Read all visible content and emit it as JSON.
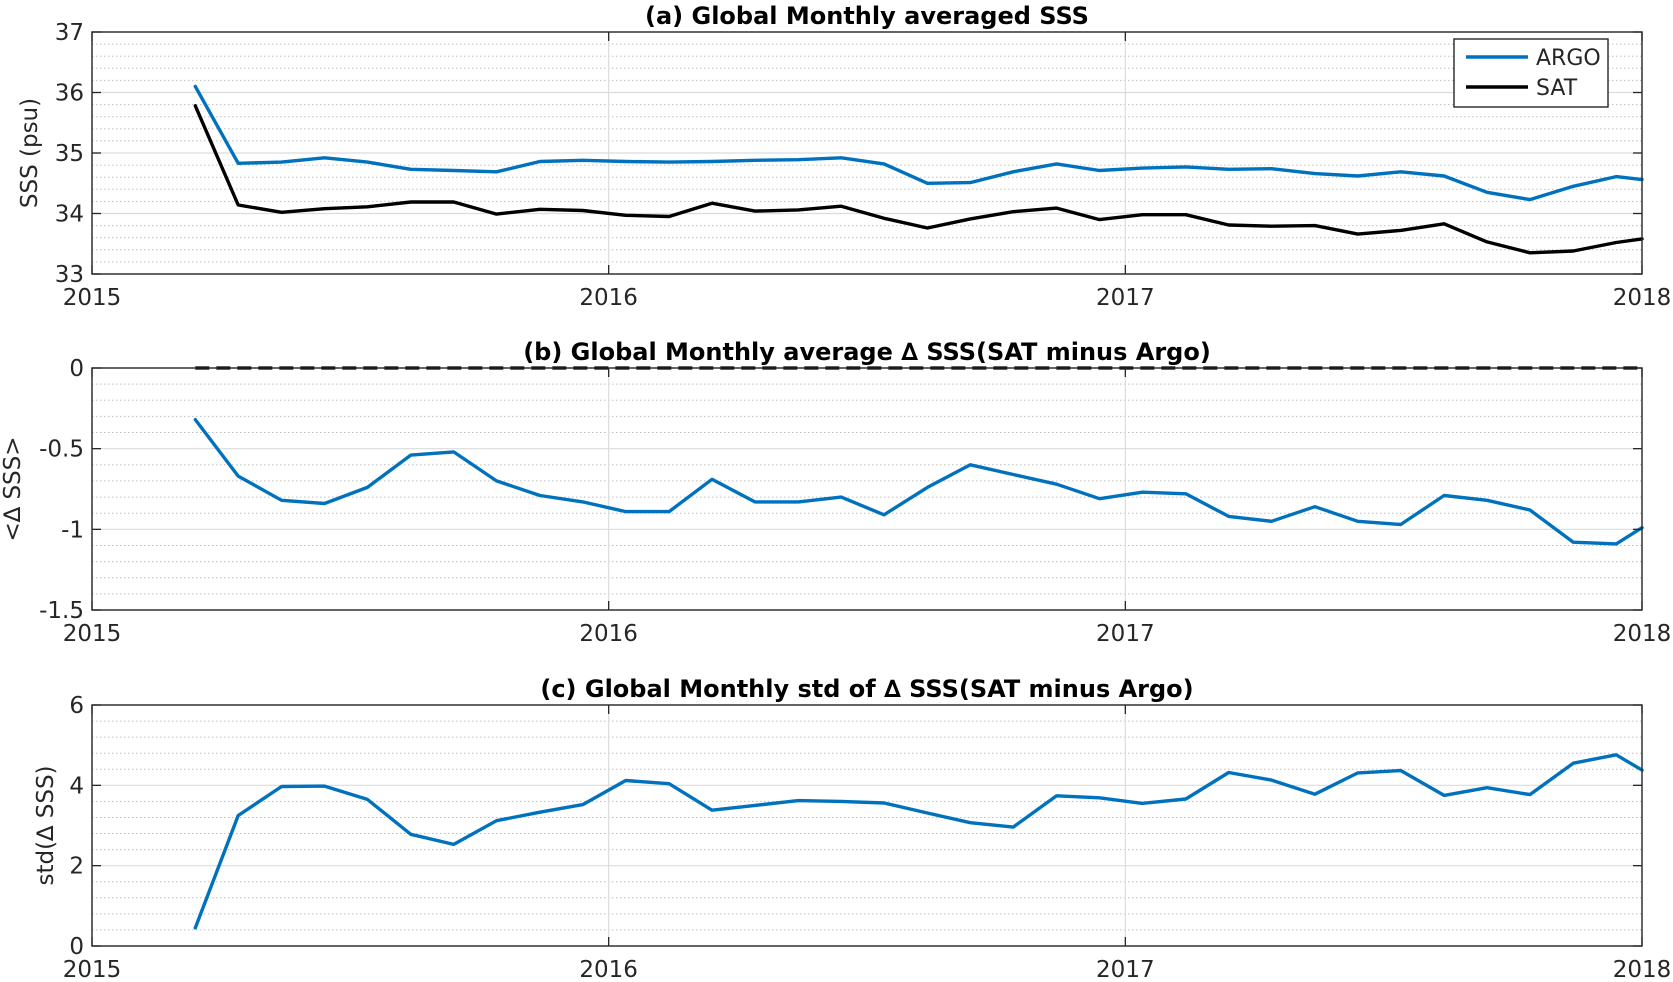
{
  "chart_data": [
    {
      "type": "line",
      "title": "(a) Global Monthly averaged SSS",
      "xlabel": "",
      "ylabel": "SSS (psu)",
      "xlim": [
        2015,
        2018
      ],
      "ylim": [
        33,
        37
      ],
      "xticks": [
        "2015",
        "2016",
        "2017",
        "2018"
      ],
      "yticks": [
        "33",
        "34",
        "35",
        "36",
        "37"
      ],
      "grid": true,
      "minor_grid": true,
      "legend": "top-right",
      "x": [
        2015.2,
        2015.283,
        2015.367,
        2015.45,
        2015.533,
        2015.617,
        2015.7,
        2015.783,
        2015.867,
        2015.95,
        2016.033,
        2016.117,
        2016.2,
        2016.283,
        2016.367,
        2016.45,
        2016.533,
        2016.617,
        2016.7,
        2016.783,
        2016.867,
        2016.95,
        2017.033,
        2017.117,
        2017.2,
        2017.283,
        2017.367,
        2017.45,
        2017.533,
        2017.617,
        2017.7,
        2017.783,
        2017.867,
        2017.95,
        2018.0
      ],
      "series": [
        {
          "name": "ARGO",
          "color": "#0072BD",
          "values": [
            36.1,
            34.83,
            34.85,
            34.92,
            34.85,
            34.73,
            34.71,
            34.69,
            34.86,
            34.88,
            34.86,
            34.85,
            34.86,
            34.88,
            34.89,
            34.92,
            34.82,
            34.5,
            34.51,
            34.69,
            34.82,
            34.71,
            34.75,
            34.77,
            34.73,
            34.74,
            34.66,
            34.62,
            34.69,
            34.62,
            34.35,
            34.23,
            34.45,
            34.61,
            34.56
          ]
        },
        {
          "name": "SAT",
          "color": "#000000",
          "values": [
            35.78,
            34.14,
            34.02,
            34.08,
            34.11,
            34.19,
            34.19,
            33.99,
            34.07,
            34.05,
            33.97,
            33.95,
            34.17,
            34.04,
            34.06,
            34.12,
            33.92,
            33.76,
            33.91,
            34.03,
            34.09,
            33.9,
            33.98,
            33.98,
            33.81,
            33.79,
            33.8,
            33.66,
            33.72,
            33.83,
            33.53,
            33.35,
            33.38,
            33.52,
            33.58
          ]
        }
      ]
    },
    {
      "type": "line",
      "title": "(b) Global Monthly average ∆ SSS(SAT minus Argo)",
      "xlabel": "",
      "ylabel": "<∆ SSS>",
      "xlim": [
        2015,
        2018
      ],
      "ylim": [
        -1.5,
        0
      ],
      "xticks": [
        "2015",
        "2016",
        "2017",
        "2018"
      ],
      "yticks": [
        "-1.5",
        "-1",
        "-0.5",
        "0"
      ],
      "grid": true,
      "minor_grid": true,
      "reference_line": {
        "y": 0,
        "color": "#000000",
        "style": "dashed",
        "xlim": [
          2015.2,
          2018.0
        ]
      },
      "x": [
        2015.2,
        2015.283,
        2015.367,
        2015.45,
        2015.533,
        2015.617,
        2015.7,
        2015.783,
        2015.867,
        2015.95,
        2016.033,
        2016.117,
        2016.2,
        2016.283,
        2016.367,
        2016.45,
        2016.533,
        2016.617,
        2016.7,
        2016.783,
        2016.867,
        2016.95,
        2017.033,
        2017.117,
        2017.2,
        2017.283,
        2017.367,
        2017.45,
        2017.533,
        2017.617,
        2017.7,
        2017.783,
        2017.867,
        2017.95,
        2018.0
      ],
      "series": [
        {
          "color": "#0072BD",
          "values": [
            -0.32,
            -0.67,
            -0.82,
            -0.84,
            -0.74,
            -0.54,
            -0.52,
            -0.7,
            -0.79,
            -0.83,
            -0.89,
            -0.89,
            -0.69,
            -0.83,
            -0.83,
            -0.8,
            -0.91,
            -0.74,
            -0.6,
            -0.66,
            -0.72,
            -0.81,
            -0.77,
            -0.78,
            -0.92,
            -0.95,
            -0.86,
            -0.95,
            -0.97,
            -0.79,
            -0.82,
            -0.88,
            -1.08,
            -1.09,
            -0.99
          ]
        }
      ]
    },
    {
      "type": "line",
      "title": "(c) Global Monthly std of ∆ SSS(SAT minus Argo)",
      "xlabel": "",
      "ylabel": "std(∆ SSS)",
      "xlim": [
        2015,
        2018
      ],
      "ylim": [
        0,
        6
      ],
      "xticks": [
        "2015",
        "2016",
        "2017",
        "2018"
      ],
      "yticks": [
        "0",
        "2",
        "4",
        "6"
      ],
      "grid": true,
      "minor_grid": true,
      "x": [
        2015.2,
        2015.283,
        2015.367,
        2015.45,
        2015.533,
        2015.617,
        2015.7,
        2015.783,
        2015.867,
        2015.95,
        2016.033,
        2016.117,
        2016.2,
        2016.283,
        2016.367,
        2016.45,
        2016.533,
        2016.617,
        2016.7,
        2016.783,
        2016.867,
        2016.95,
        2017.033,
        2017.117,
        2017.2,
        2017.283,
        2017.367,
        2017.45,
        2017.533,
        2017.617,
        2017.7,
        2017.783,
        2017.867,
        2017.95,
        2018.0
      ],
      "series": [
        {
          "color": "#0072BD",
          "values": [
            0.45,
            3.25,
            3.97,
            3.98,
            3.65,
            2.78,
            2.53,
            3.12,
            3.33,
            3.52,
            4.12,
            4.04,
            3.38,
            3.5,
            3.62,
            3.6,
            3.56,
            3.31,
            3.07,
            2.96,
            3.74,
            3.69,
            3.55,
            3.66,
            4.32,
            4.13,
            3.78,
            4.31,
            4.37,
            3.75,
            3.94,
            3.77,
            4.55,
            4.76,
            4.38
          ]
        }
      ]
    }
  ]
}
